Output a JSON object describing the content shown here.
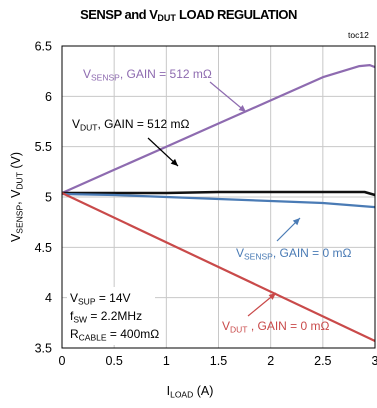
{
  "chart_data": {
    "type": "line",
    "title": {
      "prefix": "SENSP and V",
      "sub": "DUT",
      "suffix": " LOAD REGULATION"
    },
    "corner_label": "toc12",
    "xlabel": {
      "main": "I",
      "sub": "LOAD",
      "unit": " (A)"
    },
    "ylabel": {
      "p1": "V",
      "s1": "SENSP",
      "p2": ", V",
      "s2": "DUT",
      "p3": " (V)"
    },
    "xlim": [
      0,
      3
    ],
    "ylim": [
      3.5,
      6.5
    ],
    "x_ticks": [
      0,
      0.5,
      1,
      1.5,
      2,
      2.5,
      3
    ],
    "x_tick_labels": [
      "0",
      "0.5",
      "1",
      "1.5",
      "2",
      "2.5",
      "3"
    ],
    "y_ticks": [
      3.5,
      4,
      4.5,
      5,
      5.5,
      6,
      6.5
    ],
    "y_tick_labels": [
      "3.5",
      "4",
      "4.5",
      "5",
      "5.5",
      "6",
      "6.5"
    ],
    "grid": true,
    "series": [
      {
        "color": "#8e6bb0",
        "x": [
          0,
          0.5,
          1,
          1.5,
          2,
          2.5,
          2.85,
          2.95,
          3
        ],
        "y": [
          5.04,
          5.27,
          5.5,
          5.73,
          5.96,
          6.19,
          6.3,
          6.31,
          6.29
        ],
        "label": {
          "p1": "V",
          "s1": "SENSP",
          "p2": ", GAIN = 512 mΩ"
        }
      },
      {
        "color": "#111111",
        "x": [
          0,
          0.5,
          1,
          1.5,
          2,
          2.5,
          2.9,
          3
        ],
        "y": [
          5.04,
          5.04,
          5.04,
          5.05,
          5.05,
          5.05,
          5.05,
          5.02
        ],
        "label": {
          "p1": "V",
          "s1": "DUT",
          "p2": ", GAIN = 512 mΩ"
        }
      },
      {
        "color": "#4a7bb5",
        "x": [
          0,
          0.5,
          1,
          1.5,
          2,
          2.5,
          3
        ],
        "y": [
          5.03,
          5.02,
          5.0,
          4.98,
          4.96,
          4.94,
          4.9
        ],
        "label": {
          "p1": "V",
          "s1": "SENSP",
          "p2": ", GAIN = 0 mΩ"
        }
      },
      {
        "color": "#c94a4a",
        "x": [
          0,
          3
        ],
        "y": [
          5.04,
          3.57
        ],
        "label": {
          "p1": "V",
          "s1": "DUT",
          "p2": " , GAIN = 0 mΩ"
        }
      }
    ],
    "conditions": [
      {
        "p1": "V",
        "s1": "SUP",
        "p2": " = 14V"
      },
      {
        "p1": "f",
        "s1": "SW",
        "p2": " = 2.2MHz"
      },
      {
        "p1": "R",
        "s1": "CABLE",
        "p2": " = 400mΩ"
      }
    ]
  }
}
